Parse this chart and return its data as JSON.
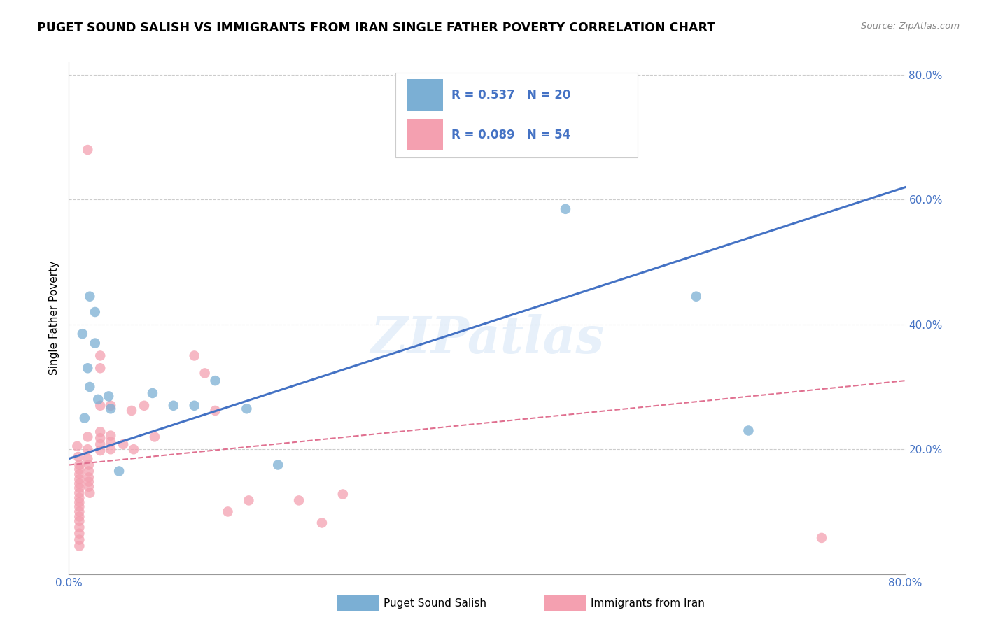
{
  "title": "PUGET SOUND SALISH VS IMMIGRANTS FROM IRAN SINGLE FATHER POVERTY CORRELATION CHART",
  "source": "Source: ZipAtlas.com",
  "ylabel": "Single Father Poverty",
  "xlim": [
    0.0,
    0.8
  ],
  "ylim": [
    0.0,
    0.82
  ],
  "ytick_labels": [
    "20.0%",
    "40.0%",
    "60.0%",
    "80.0%"
  ],
  "ytick_values": [
    0.2,
    0.4,
    0.6,
    0.8
  ],
  "legend_r1": "R = 0.537",
  "legend_n1": "N = 20",
  "legend_r2": "R = 0.089",
  "legend_n2": "N = 54",
  "watermark": "ZIPatlas",
  "blue_color": "#7BAFD4",
  "pink_color": "#F4A0B0",
  "blue_line_color": "#4472C4",
  "pink_line_color": "#E07090",
  "blue_scatter": [
    [
      0.013,
      0.385
    ],
    [
      0.02,
      0.445
    ],
    [
      0.025,
      0.42
    ],
    [
      0.025,
      0.37
    ],
    [
      0.018,
      0.33
    ],
    [
      0.015,
      0.25
    ],
    [
      0.02,
      0.3
    ],
    [
      0.028,
      0.28
    ],
    [
      0.038,
      0.285
    ],
    [
      0.04,
      0.265
    ],
    [
      0.048,
      0.165
    ],
    [
      0.08,
      0.29
    ],
    [
      0.1,
      0.27
    ],
    [
      0.12,
      0.27
    ],
    [
      0.14,
      0.31
    ],
    [
      0.17,
      0.265
    ],
    [
      0.2,
      0.175
    ],
    [
      0.475,
      0.585
    ],
    [
      0.6,
      0.445
    ],
    [
      0.65,
      0.23
    ]
  ],
  "pink_scatter": [
    [
      0.018,
      0.68
    ],
    [
      0.008,
      0.205
    ],
    [
      0.009,
      0.188
    ],
    [
      0.01,
      0.175
    ],
    [
      0.01,
      0.168
    ],
    [
      0.01,
      0.16
    ],
    [
      0.01,
      0.152
    ],
    [
      0.01,
      0.145
    ],
    [
      0.01,
      0.138
    ],
    [
      0.01,
      0.13
    ],
    [
      0.01,
      0.122
    ],
    [
      0.01,
      0.115
    ],
    [
      0.01,
      0.108
    ],
    [
      0.01,
      0.1
    ],
    [
      0.01,
      0.092
    ],
    [
      0.01,
      0.085
    ],
    [
      0.01,
      0.075
    ],
    [
      0.01,
      0.065
    ],
    [
      0.01,
      0.055
    ],
    [
      0.01,
      0.045
    ],
    [
      0.018,
      0.22
    ],
    [
      0.018,
      0.2
    ],
    [
      0.018,
      0.185
    ],
    [
      0.019,
      0.175
    ],
    [
      0.019,
      0.165
    ],
    [
      0.019,
      0.155
    ],
    [
      0.019,
      0.148
    ],
    [
      0.019,
      0.14
    ],
    [
      0.02,
      0.13
    ],
    [
      0.03,
      0.35
    ],
    [
      0.03,
      0.33
    ],
    [
      0.03,
      0.27
    ],
    [
      0.03,
      0.228
    ],
    [
      0.03,
      0.218
    ],
    [
      0.03,
      0.208
    ],
    [
      0.03,
      0.198
    ],
    [
      0.04,
      0.27
    ],
    [
      0.04,
      0.222
    ],
    [
      0.04,
      0.212
    ],
    [
      0.04,
      0.2
    ],
    [
      0.052,
      0.208
    ],
    [
      0.06,
      0.262
    ],
    [
      0.062,
      0.2
    ],
    [
      0.072,
      0.27
    ],
    [
      0.082,
      0.22
    ],
    [
      0.12,
      0.35
    ],
    [
      0.13,
      0.322
    ],
    [
      0.14,
      0.262
    ],
    [
      0.152,
      0.1
    ],
    [
      0.172,
      0.118
    ],
    [
      0.22,
      0.118
    ],
    [
      0.242,
      0.082
    ],
    [
      0.262,
      0.128
    ],
    [
      0.72,
      0.058
    ]
  ],
  "blue_line_x": [
    0.0,
    0.8
  ],
  "blue_line_y": [
    0.185,
    0.62
  ],
  "pink_line_x": [
    0.0,
    0.8
  ],
  "pink_line_y": [
    0.175,
    0.31
  ],
  "background_color": "#FFFFFF",
  "grid_color": "#CCCCCC",
  "legend_blue_label": "Puget Sound Salish",
  "legend_pink_label": "Immigrants from Iran"
}
